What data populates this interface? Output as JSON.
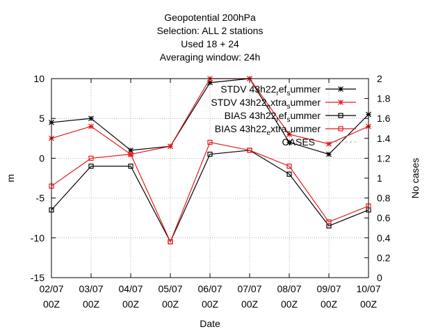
{
  "chart_data": {
    "type": "line",
    "title_lines": [
      "Geopotential 200hPa",
      "Selection: ALL       2 stations",
      "Used  18  + 24",
      "Averaging window: 24h"
    ],
    "xlabel": "Date",
    "ylabel": "m",
    "y2label": "No cases",
    "categories": [
      "02/07\n00Z",
      "03/07\n00Z",
      "04/07\n00Z",
      "05/07\n00Z",
      "06/07\n00Z",
      "07/07\n00Z",
      "08/07\n00Z",
      "09/07\n00Z",
      "10/07\n00Z"
    ],
    "ylim": [
      -15,
      10
    ],
    "y_ticks": [
      -15,
      -10,
      -5,
      0,
      5,
      10
    ],
    "y2lim": [
      0,
      2
    ],
    "y2_ticks": [
      "0",
      "0.2",
      "0.4",
      "0.6",
      "0.8",
      "1",
      "1.2",
      "1.4",
      "1.6",
      "1.8",
      "2"
    ],
    "grid": true,
    "legend_position": "top-right",
    "series": [
      {
        "name": "STDV 43h22_ref_summer",
        "legend_main": "STDV 43h22",
        "legend_sub1": "r",
        "legend_mid": "ef",
        "legend_sub2": "s",
        "legend_tail": "ummer",
        "color": "#000000",
        "marker": "star",
        "values": [
          4.5,
          5.0,
          1.0,
          1.5,
          9.5,
          10.0,
          2.0,
          0.5,
          5.5
        ]
      },
      {
        "name": "STDV 43h22_extra_summer",
        "legend_main": "STDV 43h22",
        "legend_sub1": "e",
        "legend_mid": "xtra",
        "legend_sub2": "s",
        "legend_tail": "ummer",
        "color": "#e41a1c",
        "marker": "star",
        "values": [
          2.5,
          4.0,
          0.5,
          1.5,
          10.0,
          10.0,
          3.0,
          1.8,
          4.0
        ]
      },
      {
        "name": "BIAS 43h22_ref_summer",
        "legend_main": "BIAS 43h22",
        "legend_sub1": "r",
        "legend_mid": "ef",
        "legend_sub2": "s",
        "legend_tail": "ummer",
        "color": "#000000",
        "marker": "square",
        "values": [
          -6.5,
          -1.0,
          -1.0,
          -10.5,
          0.5,
          1.0,
          -2.0,
          -8.5,
          -6.5
        ]
      },
      {
        "name": "BIAS 43h22_extra_summer",
        "legend_main": "BIAS 43h22",
        "legend_sub1": "e",
        "legend_mid": "xtra",
        "legend_sub2": "s",
        "legend_tail": "ummer",
        "color": "#e41a1c",
        "marker": "square",
        "values": [
          -3.5,
          0.0,
          0.5,
          -10.5,
          2.0,
          1.0,
          -1.0,
          -8.0,
          -6.0
        ]
      }
    ],
    "cases_series": {
      "name": "CASES",
      "color": "#a0a0a0",
      "style": "dashed"
    }
  }
}
